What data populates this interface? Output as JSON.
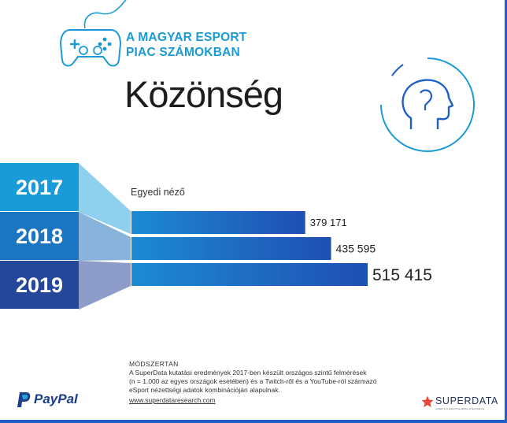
{
  "header": {
    "title_line1": "A MAGYAR ESPORT",
    "title_line2": "PIAC SZÁMOKBAN",
    "heading": "Közönség"
  },
  "icons": {
    "controller": "gamepad-icon",
    "head": "head-profile-icon",
    "paypal": "paypal-logo",
    "superdata": "superdata-star-logo"
  },
  "colors": {
    "accent": "#1a9ad6",
    "bar": "#1f4fb3",
    "year_2017": "#1a9ad6",
    "year_2018": "#1b75c0",
    "year_2019": "#24479a"
  },
  "chart_data": {
    "type": "bar",
    "orientation": "horizontal",
    "title": "Egyedi néző",
    "categories": [
      "2017",
      "2018",
      "2019"
    ],
    "values": [
      379171,
      435595,
      515415
    ],
    "value_labels": [
      "379 171",
      "435 595",
      "515 415"
    ]
  },
  "methodology": {
    "title": "MÓDSZERTAN",
    "lines": [
      "A SuperData kutatási eredmények 2017-ben készült országos szintű felmérések",
      "(n = 1.000 az egyes országok esetében) és a Twitch-ről és a YouTube-ról származó",
      "eSport nézettségi adatok kombinációján alapulnak."
    ],
    "link": "www.superdataresearch.com"
  },
  "footer": {
    "paypal": "PayPal",
    "superdata": "SUPERDATA",
    "superdata_tagline": "GAMES & INTERACTIVE MEDIA INTELLIGENCE"
  }
}
